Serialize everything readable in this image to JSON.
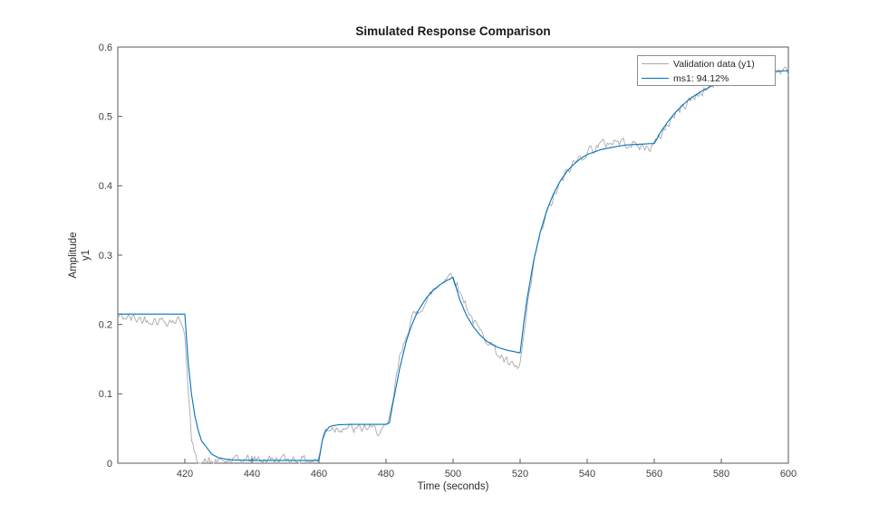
{
  "chart_data": {
    "type": "line",
    "title": "Simulated Response Comparison",
    "xlabel": "Time (seconds)",
    "ylabel": "Amplitude",
    "output_name": "y1",
    "xlim": [
      400,
      600
    ],
    "ylim": [
      0,
      0.6
    ],
    "xticks": [
      420,
      440,
      460,
      480,
      500,
      520,
      540,
      560,
      580,
      600
    ],
    "yticks": [
      0,
      0.1,
      0.2,
      0.3,
      0.4,
      0.5,
      0.6
    ],
    "grid": false,
    "axis_color": "#5a5a5a",
    "legend": {
      "position": "top-right",
      "border_color": "#8c8c8c",
      "entries": [
        {
          "label": "Validation data (y1)",
          "color": "#a9a9a9"
        },
        {
          "label": "ms1: 94.12%",
          "color": "#0072bd"
        }
      ]
    },
    "series": [
      {
        "name": "Validation data (y1)",
        "color": "#a9a9a9",
        "style": "noisy",
        "noise_amplitude": 0.009,
        "points": [
          [
            400,
            0.212
          ],
          [
            404,
            0.209
          ],
          [
            408,
            0.207
          ],
          [
            412,
            0.206
          ],
          [
            416,
            0.205
          ],
          [
            419,
            0.206
          ],
          [
            420,
            0.19
          ],
          [
            421,
            0.1
          ],
          [
            422,
            0.035
          ],
          [
            423,
            0.01
          ],
          [
            424,
            0.003
          ],
          [
            426,
            0.001
          ],
          [
            430,
            0.002
          ],
          [
            435,
            0.004
          ],
          [
            440,
            0.006
          ],
          [
            445,
            0.005
          ],
          [
            450,
            0.006
          ],
          [
            455,
            0.005
          ],
          [
            459,
            0.004
          ],
          [
            460,
            0.006
          ],
          [
            461,
            0.035
          ],
          [
            462,
            0.048
          ],
          [
            463,
            0.051
          ],
          [
            465,
            0.05
          ],
          [
            468,
            0.052
          ],
          [
            471,
            0.048
          ],
          [
            474,
            0.052
          ],
          [
            477,
            0.047
          ],
          [
            480,
            0.049
          ],
          [
            481,
            0.06
          ],
          [
            482,
            0.09
          ],
          [
            483,
            0.12
          ],
          [
            484,
            0.15
          ],
          [
            485,
            0.165
          ],
          [
            486,
            0.185
          ],
          [
            487,
            0.2
          ],
          [
            488,
            0.21
          ],
          [
            489,
            0.215
          ],
          [
            490,
            0.222
          ],
          [
            491,
            0.228
          ],
          [
            492,
            0.232
          ],
          [
            493,
            0.24
          ],
          [
            494,
            0.25
          ],
          [
            495,
            0.252
          ],
          [
            496,
            0.258
          ],
          [
            497,
            0.265
          ],
          [
            498,
            0.268
          ],
          [
            499,
            0.272
          ],
          [
            500,
            0.27
          ],
          [
            501,
            0.26
          ],
          [
            502,
            0.245
          ],
          [
            503,
            0.238
          ],
          [
            504,
            0.228
          ],
          [
            505,
            0.215
          ],
          [
            506,
            0.205
          ],
          [
            507,
            0.198
          ],
          [
            508,
            0.19
          ],
          [
            509,
            0.185
          ],
          [
            510,
            0.18
          ],
          [
            511,
            0.175
          ],
          [
            512,
            0.168
          ],
          [
            513,
            0.16
          ],
          [
            514,
            0.155
          ],
          [
            515,
            0.15
          ],
          [
            516,
            0.145
          ],
          [
            517,
            0.142
          ],
          [
            518,
            0.138
          ],
          [
            519,
            0.136
          ],
          [
            520,
            0.142
          ],
          [
            521,
            0.18
          ],
          [
            522,
            0.215
          ],
          [
            523,
            0.25
          ],
          [
            524,
            0.285
          ],
          [
            525,
            0.31
          ],
          [
            526,
            0.33
          ],
          [
            527,
            0.345
          ],
          [
            528,
            0.36
          ],
          [
            529,
            0.372
          ],
          [
            530,
            0.383
          ],
          [
            531,
            0.393
          ],
          [
            532,
            0.403
          ],
          [
            533,
            0.412
          ],
          [
            534,
            0.42
          ],
          [
            535,
            0.426
          ],
          [
            536,
            0.432
          ],
          [
            537,
            0.437
          ],
          [
            538,
            0.441
          ],
          [
            539,
            0.445
          ],
          [
            540,
            0.449
          ],
          [
            542,
            0.455
          ],
          [
            544,
            0.459
          ],
          [
            546,
            0.462
          ],
          [
            548,
            0.464
          ],
          [
            550,
            0.463
          ],
          [
            552,
            0.462
          ],
          [
            554,
            0.459
          ],
          [
            556,
            0.456
          ],
          [
            558,
            0.455
          ],
          [
            560,
            0.459
          ],
          [
            562,
            0.474
          ],
          [
            564,
            0.489
          ],
          [
            566,
            0.501
          ],
          [
            568,
            0.512
          ],
          [
            570,
            0.521
          ],
          [
            572,
            0.528
          ],
          [
            574,
            0.535
          ],
          [
            576,
            0.541
          ],
          [
            578,
            0.546
          ],
          [
            580,
            0.55
          ],
          [
            584,
            0.556
          ],
          [
            588,
            0.559
          ],
          [
            592,
            0.562
          ],
          [
            596,
            0.564
          ],
          [
            600,
            0.565
          ]
        ]
      },
      {
        "name": "ms1: 94.12%",
        "color": "#0072bd",
        "style": "smooth",
        "points": [
          [
            400,
            0.215
          ],
          [
            420,
            0.215
          ],
          [
            421,
            0.145
          ],
          [
            422,
            0.099
          ],
          [
            423,
            0.068
          ],
          [
            424,
            0.047
          ],
          [
            425,
            0.032
          ],
          [
            426,
            0.026
          ],
          [
            428,
            0.013
          ],
          [
            430,
            0.008
          ],
          [
            432,
            0.006
          ],
          [
            435,
            0.0045
          ],
          [
            440,
            0.004
          ],
          [
            450,
            0.004
          ],
          [
            460,
            0.004
          ],
          [
            461,
            0.033
          ],
          [
            462,
            0.046
          ],
          [
            463,
            0.052
          ],
          [
            464,
            0.054
          ],
          [
            466,
            0.0555
          ],
          [
            470,
            0.056
          ],
          [
            480,
            0.056
          ],
          [
            481,
            0.058
          ],
          [
            482,
            0.085
          ],
          [
            483,
            0.11
          ],
          [
            484,
            0.135
          ],
          [
            485,
            0.155
          ],
          [
            486,
            0.175
          ],
          [
            487,
            0.19
          ],
          [
            488,
            0.203
          ],
          [
            489,
            0.214
          ],
          [
            490,
            0.223
          ],
          [
            492,
            0.238
          ],
          [
            494,
            0.249
          ],
          [
            496,
            0.257
          ],
          [
            498,
            0.263
          ],
          [
            500,
            0.268
          ],
          [
            502,
            0.236
          ],
          [
            504,
            0.213
          ],
          [
            506,
            0.197
          ],
          [
            508,
            0.185
          ],
          [
            510,
            0.176
          ],
          [
            512,
            0.17
          ],
          [
            514,
            0.166
          ],
          [
            516,
            0.163
          ],
          [
            518,
            0.161
          ],
          [
            520,
            0.159
          ],
          [
            521,
            0.199
          ],
          [
            522,
            0.235
          ],
          [
            523,
            0.263
          ],
          [
            524,
            0.291
          ],
          [
            526,
            0.333
          ],
          [
            528,
            0.365
          ],
          [
            530,
            0.389
          ],
          [
            532,
            0.407
          ],
          [
            534,
            0.421
          ],
          [
            536,
            0.431
          ],
          [
            538,
            0.439
          ],
          [
            540,
            0.445
          ],
          [
            544,
            0.452
          ],
          [
            548,
            0.456
          ],
          [
            552,
            0.459
          ],
          [
            556,
            0.46
          ],
          [
            560,
            0.461
          ],
          [
            562,
            0.478
          ],
          [
            564,
            0.492
          ],
          [
            566,
            0.504
          ],
          [
            568,
            0.514
          ],
          [
            570,
            0.523
          ],
          [
            572,
            0.53
          ],
          [
            574,
            0.536
          ],
          [
            576,
            0.541
          ],
          [
            578,
            0.546
          ],
          [
            580,
            0.55
          ],
          [
            584,
            0.556
          ],
          [
            588,
            0.56
          ],
          [
            592,
            0.563
          ],
          [
            596,
            0.565
          ],
          [
            600,
            0.566
          ]
        ]
      }
    ]
  }
}
